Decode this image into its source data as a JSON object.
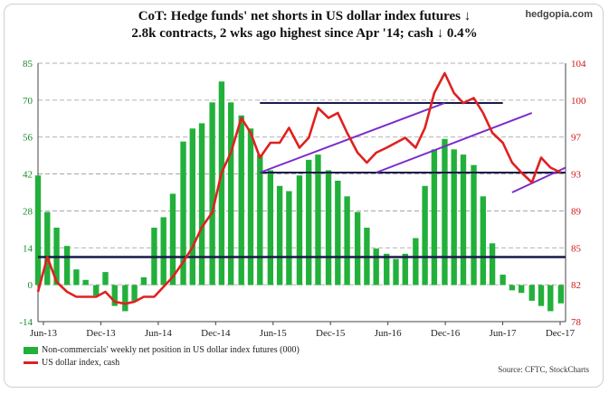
{
  "title_line1": "CoT: Hedge funds' net shorts in US dollar index futures ↓",
  "title_line2": "2.8k contracts, 2 wks ago highest since Apr '14; cash ↓ 0.4%",
  "watermark": "hedgopia.com",
  "source": "Source: CFTC, StockCharts",
  "colors": {
    "bars": "#22b03a",
    "line": "#e02020",
    "trend": "#7b2cc9",
    "support": "#1a1a4a"
  },
  "chart_data": {
    "type": "bar",
    "title": "CoT: Hedge funds' net shorts in US dollar index futures ↓ 2.8k contracts, 2 wks ago highest since Apr '14; cash ↓ 0.4%",
    "x_tick_labels": [
      "Jun-13",
      "Dec-13",
      "Jun-14",
      "Dec-14",
      "Jun-15",
      "Dec-15",
      "Jun-16",
      "Dec-16",
      "Jun-17",
      "Dec-17"
    ],
    "y_left_ticks": [
      "85",
      "70",
      "56",
      "42",
      "28",
      "14",
      "0",
      "-14"
    ],
    "y_right_ticks": [
      "104",
      "100",
      "97",
      "93",
      "89",
      "85",
      "82",
      "78"
    ],
    "ylim_left": [
      -14,
      85
    ],
    "ylim_right": [
      78,
      104
    ],
    "grid": "dashed horizontal",
    "legend_position": "bottom-left",
    "series": [
      {
        "name": "Non-commercials' weekly net position in US dollar index futures (000)",
        "type": "bar",
        "axis": "left",
        "x": [
          2013.42,
          2013.5,
          2013.58,
          2013.67,
          2013.75,
          2013.83,
          2013.92,
          2014.0,
          2014.08,
          2014.17,
          2014.25,
          2014.33,
          2014.42,
          2014.5,
          2014.58,
          2014.67,
          2014.75,
          2014.83,
          2014.92,
          2015.0,
          2015.08,
          2015.17,
          2015.25,
          2015.33,
          2015.42,
          2015.5,
          2015.58,
          2015.67,
          2015.75,
          2015.83,
          2015.92,
          2016.0,
          2016.08,
          2016.17,
          2016.25,
          2016.33,
          2016.42,
          2016.5,
          2016.58,
          2016.67,
          2016.75,
          2016.83,
          2016.92,
          2017.0,
          2017.08,
          2017.17,
          2017.25,
          2017.33,
          2017.42,
          2017.5,
          2017.58,
          2017.67,
          2017.75,
          2017.83,
          2017.92
        ],
        "values": [
          42,
          28,
          22,
          15,
          6,
          2,
          -4,
          5,
          -8,
          -10,
          -6,
          3,
          22,
          26,
          35,
          55,
          60,
          62,
          70,
          78,
          70,
          65,
          60,
          50,
          44,
          38,
          36,
          42,
          48,
          50,
          44,
          40,
          34,
          28,
          22,
          14,
          12,
          10,
          12,
          18,
          38,
          52,
          56,
          52,
          50,
          46,
          34,
          16,
          4,
          -2,
          -3,
          -6,
          -8,
          -10,
          -7
        ]
      },
      {
        "name": "US dollar index, cash",
        "type": "line",
        "axis": "right",
        "x": [
          2013.42,
          2013.5,
          2013.58,
          2013.67,
          2013.75,
          2013.83,
          2013.92,
          2014.0,
          2014.08,
          2014.17,
          2014.25,
          2014.33,
          2014.42,
          2014.5,
          2014.58,
          2014.67,
          2014.75,
          2014.83,
          2014.92,
          2015.0,
          2015.08,
          2015.17,
          2015.25,
          2015.33,
          2015.42,
          2015.5,
          2015.58,
          2015.67,
          2015.75,
          2015.83,
          2015.92,
          2016.0,
          2016.08,
          2016.17,
          2016.25,
          2016.33,
          2016.42,
          2016.5,
          2016.58,
          2016.67,
          2016.75,
          2016.83,
          2016.92,
          2017.0,
          2017.08,
          2017.17,
          2017.25,
          2017.33,
          2017.42,
          2017.5,
          2017.58,
          2017.67,
          2017.75,
          2017.83,
          2017.92
        ],
        "values": [
          81,
          84.5,
          82,
          81,
          80.5,
          80.5,
          80.5,
          81,
          80,
          79.8,
          80,
          80.5,
          80.5,
          81.5,
          82.5,
          84,
          85.5,
          87.5,
          89,
          93,
          95,
          98.5,
          97,
          94.5,
          96,
          96,
          97.5,
          95.5,
          96.5,
          99.5,
          98.5,
          99,
          97,
          95,
          94,
          95,
          95.5,
          96,
          96.5,
          95.5,
          97.5,
          101,
          103,
          101,
          100,
          100.5,
          99,
          97,
          96,
          94,
          93,
          92,
          94.5,
          93.5,
          93
        ]
      }
    ]
  },
  "legend": {
    "bars_label": "Non-commercials' weekly net position in US dollar index futures (000)",
    "line_label": "US dollar index, cash"
  }
}
